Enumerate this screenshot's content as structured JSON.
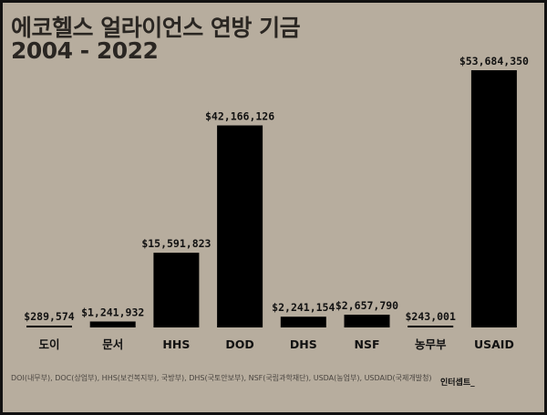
{
  "chart_data": {
    "type": "bar",
    "title": "에코헬스 얼라이언스 연방 기금",
    "subtitle": "2004 - 2022",
    "categories": [
      "도이",
      "문서",
      "HHS",
      "DOD",
      "DHS",
      "NSF",
      "농무부",
      "USAID"
    ],
    "values": [
      289574,
      1241932,
      15591823,
      42166126,
      2241154,
      2657790,
      243001,
      53684350
    ],
    "data_labels": [
      "$289,574",
      "$1,241,932",
      "$15,591,823",
      "$42,166,126",
      "$2,241,154",
      "$2,657,790",
      "$243,001",
      "$53,684,350"
    ],
    "xlabel": "",
    "ylabel": "",
    "ylim": [
      0,
      53684350
    ],
    "grid": false,
    "bar_color": "#000000"
  },
  "footnote": "DOI(내무부), DOC(상업부), HHS(보건복지부), 국방부), DHS(국토안보부), NSF(국립과학재단), USDA(농업부), USDAID(국제개발청)",
  "brand": "인터셉트_"
}
